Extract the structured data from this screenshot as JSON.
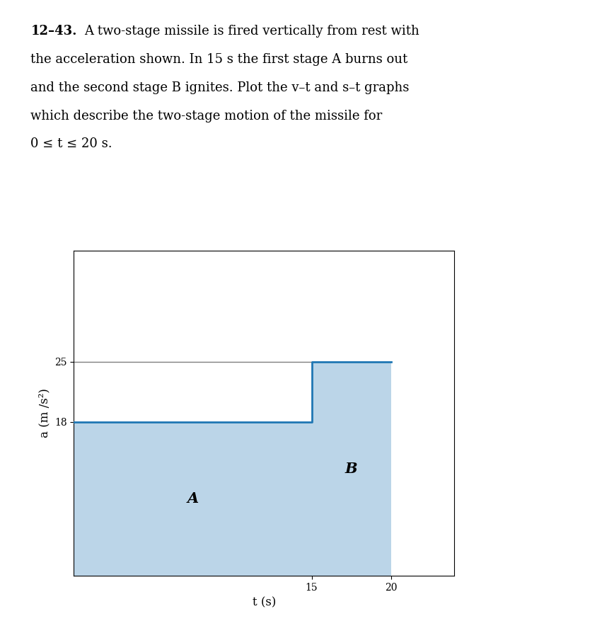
{
  "chart_data": {
    "type": "area",
    "problem_number": "12–43.",
    "text_lines": [
      "A two-stage missile is fired vertically from rest with",
      "the acceleration shown. In 15 s the first stage A burns out",
      "and the second stage B ignites. Plot the v–t and s–t graphs",
      "which describe the two-stage motion of the missile for",
      "0 ≤ t ≤ 20 s."
    ],
    "x": [
      0,
      15,
      15,
      20
    ],
    "values": [
      18,
      18,
      25,
      25
    ],
    "stage_labels": [
      "A",
      "B"
    ],
    "reference_line": {
      "y": 25,
      "x_from": 0,
      "x_to": 15
    },
    "xlabel": "t (s)",
    "ylabel": "a (m /s²)",
    "xlim": [
      0,
      24
    ],
    "ylim": [
      0,
      38
    ],
    "xticks": [
      15,
      20
    ],
    "yticks": [
      18,
      25
    ],
    "grid": false
  }
}
